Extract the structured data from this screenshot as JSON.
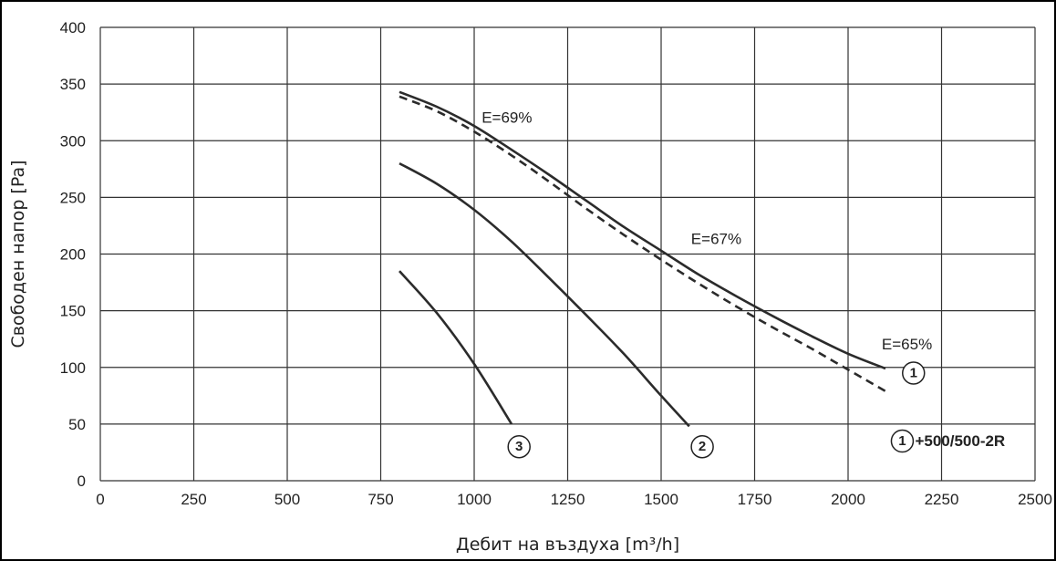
{
  "chart_data": {
    "type": "line",
    "title": "",
    "xlabel": "Дебит на въздуха [m³/h]",
    "ylabel": "Свободен напор [Pa]",
    "xlim": [
      0,
      2500
    ],
    "ylim": [
      0,
      400
    ],
    "xticks": [
      "0",
      "250",
      "500",
      "750",
      "1000",
      "1250",
      "1500",
      "1750",
      "2000",
      "2250",
      "2500"
    ],
    "yticks": [
      "0",
      "50",
      "100",
      "150",
      "200",
      "250",
      "300",
      "350",
      "400"
    ],
    "grid": true,
    "series": [
      {
        "marker": "1",
        "style": "solid",
        "points": [
          [
            800,
            343
          ],
          [
            900,
            330
          ],
          [
            1000,
            313
          ],
          [
            1100,
            292
          ],
          [
            1200,
            270
          ],
          [
            1300,
            247
          ],
          [
            1400,
            224
          ],
          [
            1500,
            203
          ],
          [
            1600,
            182
          ],
          [
            1700,
            163
          ],
          [
            1800,
            145
          ],
          [
            1900,
            128
          ],
          [
            2000,
            112
          ],
          [
            2100,
            99
          ]
        ]
      },
      {
        "marker": "1",
        "style": "dashed",
        "points": [
          [
            800,
            339
          ],
          [
            900,
            326
          ],
          [
            1000,
            308
          ],
          [
            1100,
            287
          ],
          [
            1200,
            264
          ],
          [
            1300,
            240
          ],
          [
            1400,
            217
          ],
          [
            1500,
            195
          ],
          [
            1600,
            174
          ],
          [
            1700,
            154
          ],
          [
            1800,
            135
          ],
          [
            1900,
            117
          ],
          [
            2000,
            98
          ],
          [
            2100,
            79
          ]
        ]
      },
      {
        "marker": "2",
        "style": "solid",
        "points": [
          [
            800,
            280
          ],
          [
            900,
            262
          ],
          [
            1000,
            239
          ],
          [
            1100,
            211
          ],
          [
            1200,
            179
          ],
          [
            1300,
            146
          ],
          [
            1400,
            112
          ],
          [
            1500,
            75
          ],
          [
            1575,
            48
          ]
        ]
      },
      {
        "marker": "3",
        "style": "solid",
        "points": [
          [
            800,
            185
          ],
          [
            900,
            148
          ],
          [
            1000,
            103
          ],
          [
            1100,
            50
          ]
        ]
      }
    ],
    "annotations": [
      {
        "text": "E=69%",
        "x": 1020,
        "y": 316
      },
      {
        "text": "E=67%",
        "x": 1580,
        "y": 209
      },
      {
        "text": "E=65%",
        "x": 2090,
        "y": 116
      }
    ],
    "markers": [
      {
        "label": "1",
        "x": 2175,
        "y": 95
      },
      {
        "label": "2",
        "x": 1610,
        "y": 30
      },
      {
        "label": "3",
        "x": 1120,
        "y": 30
      }
    ],
    "legend": {
      "marker": "1",
      "text": "+500/500-2R"
    }
  }
}
